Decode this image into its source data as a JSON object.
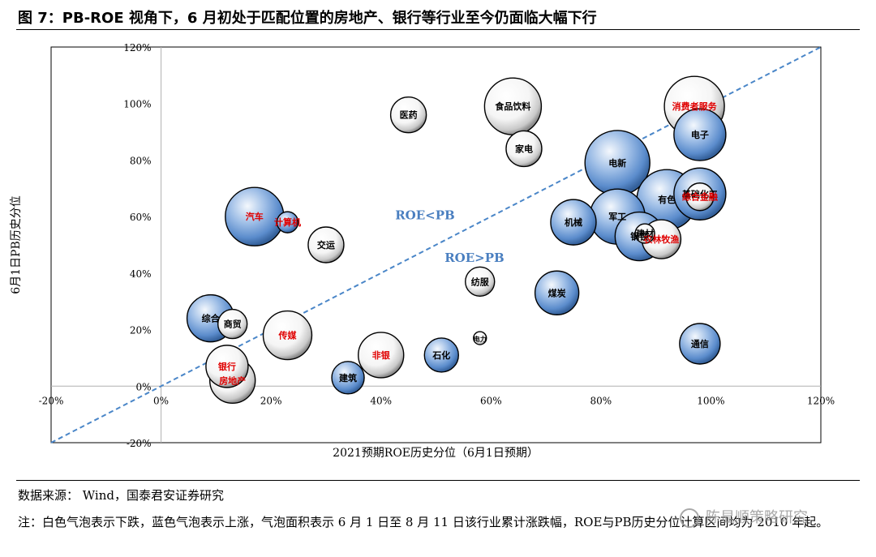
{
  "figure": {
    "title": "图 7：PB-ROE 视角下，6 月初处于匹配位置的房地产、银行等行业至今仍面临大幅下行",
    "source": "数据来源： Wind，国泰君安证券研究",
    "note": "注：白色气泡表示下跌，蓝色气泡表示上涨，气泡面积表示 6 月 1 日至 8 月 11 日该行业累计涨跌幅，ROE与PB历史分位计算区间均为 2010 年起。",
    "watermark": "陈显顺策略研究"
  },
  "colors": {
    "rise": "#5b8ccc",
    "fall": "#ffffff",
    "diagonal": "#4a86c8",
    "region_label": "#4a7fc0",
    "red_label": "#e00000"
  },
  "chart_data": {
    "type": "scatter",
    "subtype": "bubble",
    "xlabel": "2021预期ROE历史分位（6月1日预期）",
    "ylabel": "6月1日PB历史分位",
    "xlim": [
      -20,
      120
    ],
    "ylim": [
      -20,
      120
    ],
    "x_ticks": [
      -20,
      0,
      20,
      40,
      60,
      80,
      100,
      120
    ],
    "y_ticks": [
      -20,
      0,
      20,
      40,
      60,
      80,
      100,
      120
    ],
    "tick_format": "%",
    "grid": false,
    "diagonal_line": {
      "from": [
        -20,
        -20
      ],
      "to": [
        120,
        120
      ],
      "style": "dashed"
    },
    "region_labels": [
      {
        "text": "ROE<PB",
        "x": 48,
        "y": 59
      },
      {
        "text": "ROE>PB",
        "x": 57,
        "y": 44
      }
    ],
    "points": [
      {
        "name": "医药",
        "x": 45,
        "y": 96,
        "size": 22,
        "color": "fall",
        "red": false
      },
      {
        "name": "食品饮料",
        "x": 64,
        "y": 99,
        "size": 35,
        "color": "fall",
        "red": false
      },
      {
        "name": "家电",
        "x": 66,
        "y": 84,
        "size": 22,
        "color": "fall",
        "red": false
      },
      {
        "name": "消费者服务",
        "x": 97,
        "y": 99,
        "size": 37,
        "color": "fall",
        "red": true
      },
      {
        "name": "电子",
        "x": 98,
        "y": 89,
        "size": 32,
        "color": "rise",
        "red": false
      },
      {
        "name": "电新",
        "x": 83,
        "y": 79,
        "size": 40,
        "color": "rise",
        "red": false
      },
      {
        "name": "有色",
        "x": 92,
        "y": 66,
        "size": 37,
        "color": "rise",
        "red": false
      },
      {
        "name": "基础化工",
        "x": 98,
        "y": 68,
        "size": 32,
        "color": "rise",
        "red": false
      },
      {
        "name": "综合金融",
        "x": 98,
        "y": 67,
        "size": 17,
        "color": "fall",
        "red": true
      },
      {
        "name": "汽车",
        "x": 17,
        "y": 60,
        "size": 36,
        "color": "rise",
        "red": true
      },
      {
        "name": "计算机",
        "x": 23,
        "y": 58,
        "size": 13,
        "color": "rise",
        "red": true
      },
      {
        "name": "交运",
        "x": 30,
        "y": 50,
        "size": 22,
        "color": "fall",
        "red": false
      },
      {
        "name": "机械",
        "x": 75,
        "y": 58,
        "size": 28,
        "color": "rise",
        "red": false
      },
      {
        "name": "军工",
        "x": 83,
        "y": 60,
        "size": 34,
        "color": "rise",
        "red": false
      },
      {
        "name": "钢铁",
        "x": 87,
        "y": 53,
        "size": 30,
        "color": "rise",
        "red": false
      },
      {
        "name": "农林牧渔",
        "x": 91,
        "y": 52,
        "size": 24,
        "color": "fall",
        "red": true
      },
      {
        "name": "建材",
        "x": 88,
        "y": 54,
        "size": 12,
        "color": "fall",
        "red": false
      },
      {
        "name": "纺服",
        "x": 58,
        "y": 37,
        "size": 18,
        "color": "fall",
        "red": false
      },
      {
        "name": "煤炭",
        "x": 72,
        "y": 33,
        "size": 27,
        "color": "rise",
        "red": false
      },
      {
        "name": "电力",
        "x": 58,
        "y": 17,
        "size": 8,
        "color": "fall",
        "red": false
      },
      {
        "name": "综合",
        "x": 9,
        "y": 24,
        "size": 29,
        "color": "rise",
        "red": false
      },
      {
        "name": "商贸",
        "x": 13,
        "y": 22,
        "size": 18,
        "color": "fall",
        "red": false
      },
      {
        "name": "传媒",
        "x": 23,
        "y": 18,
        "size": 30,
        "color": "fall",
        "red": true
      },
      {
        "name": "非银",
        "x": 40,
        "y": 11,
        "size": 28,
        "color": "fall",
        "red": true
      },
      {
        "name": "石化",
        "x": 51,
        "y": 11,
        "size": 21,
        "color": "rise",
        "red": false
      },
      {
        "name": "通信",
        "x": 98,
        "y": 15,
        "size": 25,
        "color": "rise",
        "red": false
      },
      {
        "name": "银行",
        "x": 12,
        "y": 7,
        "size": 26,
        "color": "fall",
        "red": true
      },
      {
        "name": "房地产",
        "x": 13,
        "y": 2,
        "size": 28,
        "color": "fall",
        "red": true
      },
      {
        "name": "建筑",
        "x": 34,
        "y": 3,
        "size": 20,
        "color": "rise",
        "red": false
      }
    ]
  }
}
